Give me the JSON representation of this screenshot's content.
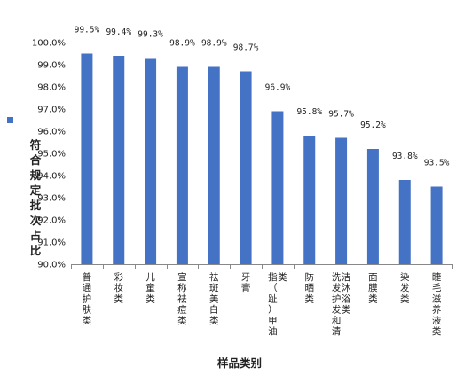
{
  "chart_data": {
    "type": "bar",
    "categories": [
      "普通护肤类",
      "彩妆类",
      "儿童类",
      "宣称祛痘类",
      "祛斑美白类",
      "牙膏",
      "指（趾）甲油类",
      "防晒类",
      "洗发护发和清洁沐浴类",
      "面膜类",
      "染发类",
      "睫毛滋养液类"
    ],
    "series": [
      {
        "name": "符合规定批次占比",
        "values": [
          99.5,
          99.4,
          99.3,
          98.9,
          98.9,
          98.7,
          96.9,
          95.8,
          95.7,
          95.2,
          93.8,
          93.5
        ]
      }
    ],
    "data_labels": [
      "99.5%",
      "99.4%",
      "99.3%",
      "98.9%",
      "98.9%",
      "98.7%",
      "96.9%",
      "95.8%",
      "95.7%",
      "95.2%",
      "93.8%",
      "93.5%"
    ],
    "ytick_labels": [
      "90.0%",
      "91.0%",
      "92.0%",
      "93.0%",
      "94.0%",
      "95.0%",
      "96.0%",
      "97.0%",
      "98.0%",
      "99.0%",
      "100.0%"
    ],
    "ylim": [
      90,
      100
    ],
    "xlabel": "样品类别",
    "ylabel": "符合规定批次占比",
    "legend_position": "left",
    "grid": false,
    "bar_color": "#4472c4"
  }
}
